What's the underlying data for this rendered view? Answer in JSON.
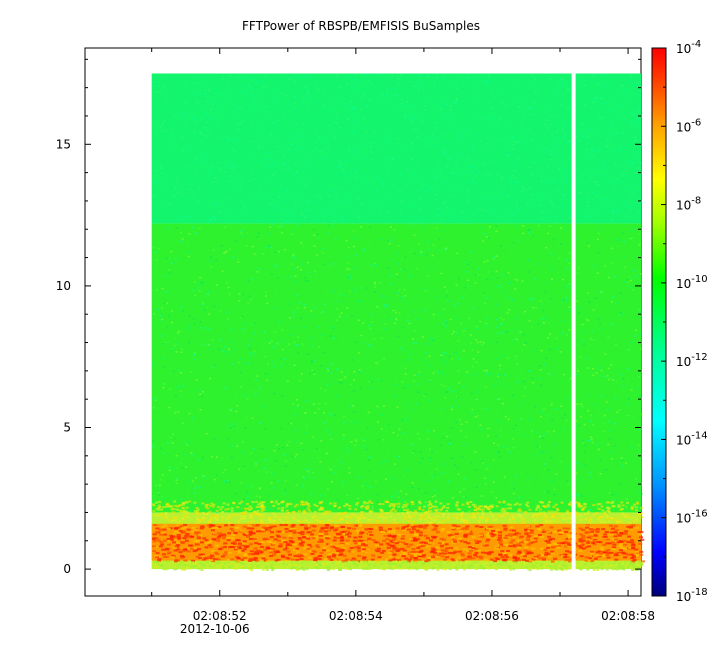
{
  "chart_data": {
    "type": "heatmap",
    "title": "FFTPower of RBSPB/EMFISIS  BuSamples",
    "xlabel": "",
    "ylabel": "",
    "x_ticks": [
      {
        "time": "02:08:52",
        "sublabel": "2012-10-06"
      },
      {
        "time": "02:08:54",
        "sublabel": ""
      },
      {
        "time": "02:08:56",
        "sublabel": ""
      },
      {
        "time": "02:08:58",
        "sublabel": ""
      }
    ],
    "x_range_seconds": [
      "02:08:50.02",
      "02:08:58.19"
    ],
    "data_x_range_seconds": [
      "02:08:51.00",
      "02:08:58.19"
    ],
    "data_gap_at": "02:08:57.20",
    "y_ticks": [
      0,
      5,
      10,
      15
    ],
    "ylim": [
      -0.95,
      18.4
    ],
    "data_y_range": [
      0,
      17.5
    ],
    "colorbar": {
      "scale": "log",
      "ticks": [
        "10^-4",
        "10^-6",
        "10^-8",
        "10^-10",
        "10^-12",
        "10^-14",
        "10^-16",
        "10^-18"
      ],
      "range": [
        1e-18,
        0.0001
      ],
      "colors": [
        "#000080",
        "#0000ff",
        "#00a0ff",
        "#00ffff",
        "#00ff80",
        "#00ff00",
        "#80ff00",
        "#ffff00",
        "#ffa000",
        "#ff4000",
        "#ff0000"
      ]
    },
    "bands": [
      {
        "y_range": [
          12.2,
          17.5
        ],
        "level": "~1e-12"
      },
      {
        "y_range": [
          2.0,
          12.2
        ],
        "level": "~1e-10.5"
      },
      {
        "y_range": [
          0.3,
          1.6
        ],
        "level": "~1e-5 (intense)"
      }
    ]
  }
}
